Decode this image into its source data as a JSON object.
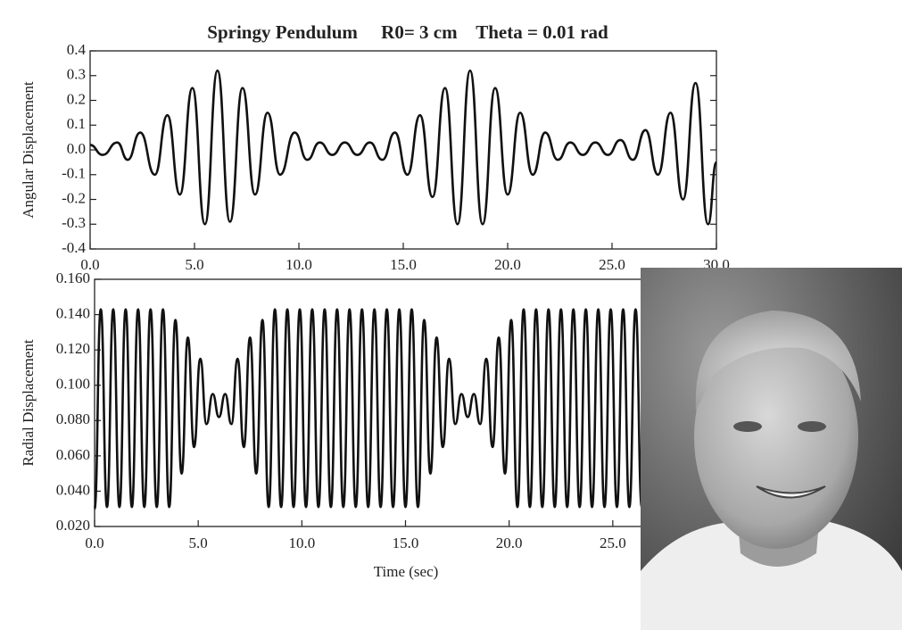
{
  "chart_data": [
    {
      "type": "line",
      "title": "Springy Pendulum     R0= 3 cm    Theta = 0.01 rad",
      "y_label": "Angular Displacement",
      "x": [
        0,
        0.6,
        1.3,
        1.8,
        2.4,
        3.1,
        3.7,
        4.3,
        4.9,
        5.5,
        6.1,
        6.7,
        7.3,
        7.9,
        8.5,
        9.1,
        9.8,
        10.4,
        11.0,
        11.6,
        12.2,
        12.8,
        13.4,
        14.0,
        14.6,
        15.2,
        15.8,
        16.4,
        17.0,
        17.6,
        18.2,
        18.8,
        19.4,
        20.0,
        20.6,
        21.2,
        21.8,
        22.4,
        23.0,
        23.6,
        24.2,
        24.8,
        25.4,
        26.0,
        26.6,
        27.2,
        27.8,
        28.4,
        29.0,
        29.6,
        30.0
      ],
      "values": [
        0.02,
        -0.02,
        0.03,
        -0.04,
        0.07,
        -0.1,
        0.14,
        -0.18,
        0.25,
        -0.3,
        0.32,
        -0.29,
        0.25,
        -0.18,
        0.15,
        -0.1,
        0.07,
        -0.04,
        0.03,
        -0.02,
        0.03,
        -0.02,
        0.03,
        -0.04,
        0.07,
        -0.1,
        0.14,
        -0.19,
        0.25,
        -0.3,
        0.32,
        -0.3,
        0.25,
        -0.18,
        0.15,
        -0.1,
        0.07,
        -0.04,
        0.03,
        -0.02,
        0.03,
        -0.02,
        0.04,
        -0.04,
        0.08,
        -0.1,
        0.15,
        -0.2,
        0.27,
        -0.3,
        -0.05
      ],
      "color": "#111111",
      "xlim": [
        0,
        30
      ],
      "xticks": [
        {
          "value": 0,
          "label": "0.0"
        },
        {
          "value": 5,
          "label": "5.0"
        },
        {
          "value": 10,
          "label": "10.0"
        },
        {
          "value": 15,
          "label": "15.0"
        },
        {
          "value": 20,
          "label": "20.0"
        },
        {
          "value": 25,
          "label": "25.0"
        },
        {
          "value": 30,
          "label": "30.0"
        }
      ],
      "ylim": [
        -0.4,
        0.4
      ],
      "yticks": [
        -0.4,
        -0.3,
        -0.2,
        -0.1,
        {
          "value": 0,
          "label": "0.0"
        },
        0.1,
        0.2,
        0.3,
        0.4
      ]
    },
    {
      "type": "line",
      "x_label": "Time (sec)",
      "y_label": "Radial Displacement",
      "x": [
        0,
        0.3,
        0.6,
        0.9,
        1.2,
        1.5,
        1.8,
        2.1,
        2.4,
        2.7,
        3,
        3.3,
        3.6,
        3.9,
        4.2,
        4.5,
        4.8,
        5.1,
        5.4,
        5.7,
        6,
        6.3,
        6.6,
        6.9,
        7.2,
        7.5,
        7.8,
        8.1,
        8.4,
        8.7,
        9,
        9.3,
        9.6,
        9.9,
        10.2,
        10.5,
        10.8,
        11.1,
        11.4,
        11.7,
        12,
        12.3,
        12.6,
        12.9,
        13.2,
        13.5,
        13.8,
        14.1,
        14.4,
        14.7,
        15,
        15.3,
        15.6,
        15.9,
        16.2,
        16.5,
        16.8,
        17.1,
        17.4,
        17.7,
        18,
        18.3,
        18.6,
        18.9,
        19.2,
        19.5,
        19.8,
        20.1,
        20.4,
        20.7,
        21,
        21.3,
        21.6,
        21.9,
        22.2,
        22.5,
        22.8,
        23.1,
        23.4,
        23.7,
        24,
        24.3,
        24.6,
        24.9,
        25.2,
        25.5,
        25.8,
        26.1,
        26.4,
        26.7,
        27,
        27.3,
        27.6,
        27.9,
        28.2,
        28.5,
        28.8,
        29.1,
        29.4,
        29.7,
        30
      ],
      "values": [
        0.03,
        0.143,
        0.031,
        0.143,
        0.031,
        0.143,
        0.031,
        0.143,
        0.031,
        0.143,
        0.031,
        0.143,
        0.031,
        0.137,
        0.05,
        0.127,
        0.065,
        0.115,
        0.078,
        0.095,
        0.082,
        0.095,
        0.078,
        0.115,
        0.065,
        0.127,
        0.05,
        0.137,
        0.031,
        0.143,
        0.031,
        0.143,
        0.031,
        0.143,
        0.031,
        0.143,
        0.031,
        0.143,
        0.031,
        0.143,
        0.031,
        0.143,
        0.031,
        0.143,
        0.031,
        0.143,
        0.031,
        0.143,
        0.031,
        0.143,
        0.031,
        0.143,
        0.031,
        0.137,
        0.05,
        0.127,
        0.065,
        0.115,
        0.078,
        0.095,
        0.082,
        0.095,
        0.078,
        0.115,
        0.065,
        0.127,
        0.05,
        0.137,
        0.031,
        0.143,
        0.031,
        0.143,
        0.031,
        0.143,
        0.031,
        0.143,
        0.031,
        0.143,
        0.031,
        0.143,
        0.031,
        0.143,
        0.031,
        0.143,
        0.031,
        0.143,
        0.031,
        0.143,
        0.031,
        0.143,
        0.031,
        0.143,
        0.031,
        0.137,
        0.05,
        0.127,
        0.065,
        0.115,
        0.078,
        0.095,
        0.082
      ],
      "color": "#111111",
      "xlim": [
        0,
        30
      ],
      "xticks": [
        {
          "value": 0,
          "label": "0.0"
        },
        {
          "value": 5,
          "label": "5.0"
        },
        {
          "value": 10,
          "label": "10.0"
        },
        {
          "value": 15,
          "label": "15.0"
        },
        {
          "value": 20,
          "label": "20.0"
        },
        {
          "value": 25,
          "label": "25.0"
        }
      ],
      "ylim": [
        0.02,
        0.16
      ],
      "yticks": [
        {
          "value": 0.02,
          "label": "0.020"
        },
        {
          "value": 0.04,
          "label": "0.040"
        },
        {
          "value": 0.06,
          "label": "0.060"
        },
        {
          "value": 0.08,
          "label": "0.080"
        },
        {
          "value": 0.1,
          "label": "0.100"
        },
        {
          "value": 0.12,
          "label": "0.120"
        },
        {
          "value": 0.14,
          "label": "0.140"
        },
        {
          "value": 0.16,
          "label": "0.160"
        }
      ]
    }
  ]
}
